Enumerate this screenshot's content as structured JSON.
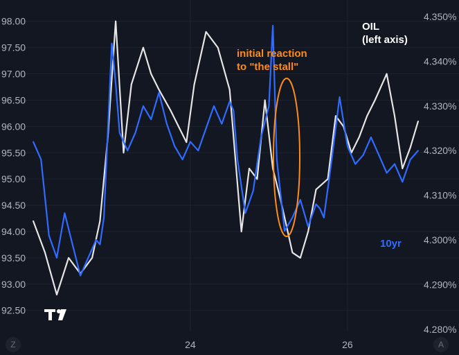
{
  "chart_data": {
    "type": "line",
    "grid": true,
    "left_axis": {
      "ticks": [
        "98.00",
        "97.50",
        "97.00",
        "96.50",
        "96.00",
        "95.50",
        "95.00",
        "94.50",
        "94.00",
        "93.50",
        "93.00",
        "92.50"
      ],
      "ylim": [
        92.1,
        98.3
      ]
    },
    "right_axis": {
      "ticks": [
        "4.350%",
        "4.340%",
        "4.330%",
        "4.320%",
        "4.310%",
        "4.300%",
        "4.290%",
        "4.280%"
      ],
      "ylim": [
        4.2795,
        4.3525
      ]
    },
    "x_axis": {
      "ticks": [
        "24",
        "26"
      ],
      "xlim": [
        22.0,
        26.9
      ]
    },
    "series": [
      {
        "name": "OIL",
        "label": "OIL",
        "label_line2": "(left axis)",
        "axis": "left",
        "color": "#e6e6e6",
        "x": [
          22.0,
          22.15,
          22.3,
          22.45,
          22.6,
          22.75,
          22.85,
          22.95,
          23.05,
          23.15,
          23.25,
          23.4,
          23.5,
          23.6,
          23.75,
          23.85,
          23.95,
          24.05,
          24.2,
          24.35,
          24.5,
          24.65,
          24.75,
          24.85,
          24.95,
          25.05,
          25.15,
          25.3,
          25.4,
          25.5,
          25.6,
          25.75,
          25.85,
          25.95,
          26.05,
          26.15,
          26.25,
          26.35,
          26.5,
          26.6,
          26.7,
          26.8,
          26.9
        ],
        "y": [
          94.2,
          93.6,
          92.8,
          93.5,
          93.2,
          93.5,
          94.2,
          95.8,
          98.0,
          95.5,
          96.8,
          97.5,
          97.0,
          96.7,
          96.3,
          96.0,
          95.7,
          96.8,
          97.8,
          97.5,
          96.7,
          94.0,
          95.2,
          95.0,
          96.5,
          95.2,
          94.6,
          93.6,
          93.5,
          94.0,
          94.8,
          95.0,
          96.2,
          96.0,
          95.5,
          95.8,
          96.2,
          96.5,
          97.0,
          96.2,
          95.2,
          95.6,
          96.1
        ]
      },
      {
        "name": "10yr",
        "label": "10yr",
        "axis": "right",
        "color": "#2f6cff",
        "x": [
          22.0,
          22.1,
          22.2,
          22.3,
          22.4,
          22.5,
          22.6,
          22.7,
          22.8,
          22.85,
          22.9,
          23.0,
          23.05,
          23.1,
          23.2,
          23.3,
          23.4,
          23.5,
          23.6,
          23.7,
          23.8,
          23.9,
          24.0,
          24.1,
          24.2,
          24.3,
          24.4,
          24.5,
          24.55,
          24.6,
          24.7,
          24.8,
          24.9,
          25.0,
          25.05,
          25.1,
          25.2,
          25.3,
          25.4,
          25.5,
          25.6,
          25.65,
          25.7,
          25.8,
          25.9,
          26.0,
          26.1,
          26.2,
          26.3,
          26.4,
          26.5,
          26.6,
          26.7,
          26.8,
          26.9
        ],
        "y": [
          4.322,
          4.318,
          4.301,
          4.296,
          4.306,
          4.299,
          4.292,
          4.296,
          4.3,
          4.299,
          4.305,
          4.344,
          4.335,
          4.324,
          4.32,
          4.324,
          4.33,
          4.327,
          4.333,
          4.326,
          4.321,
          4.318,
          4.322,
          4.32,
          4.325,
          4.33,
          4.326,
          4.331,
          4.329,
          4.318,
          4.306,
          4.311,
          4.323,
          4.33,
          4.348,
          4.318,
          4.302,
          4.305,
          4.309,
          4.303,
          4.308,
          4.307,
          4.305,
          4.318,
          4.332,
          4.321,
          4.317,
          4.319,
          4.323,
          4.319,
          4.315,
          4.317,
          4.313,
          4.318,
          4.32
        ]
      }
    ],
    "annotations": [
      {
        "line1": "initial reaction",
        "line2": "to \"the stall\"",
        "color": "#ff8c1a"
      }
    ]
  },
  "ui": {
    "logo": "TV",
    "corner_left": "Z",
    "corner_right": "A"
  }
}
